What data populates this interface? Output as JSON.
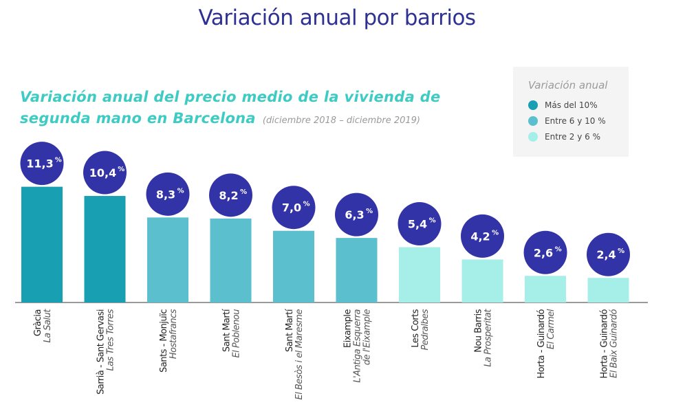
{
  "header": {
    "title": "Variación anual por barrios"
  },
  "subtitle": {
    "main": "Variación anual del precio medio de la vivienda de segunda mano en Barcelona",
    "period": "(diciembre 2018 – diciembre 2019)"
  },
  "legend": {
    "title": "Variación anual",
    "items": [
      {
        "label": "Más del 10%",
        "color": "#18a0b2"
      },
      {
        "label": "Entre 6 y 10 %",
        "color": "#5bbfcd"
      },
      {
        "label": "Entre 2  y 6 %",
        "color": "#a5efe8"
      }
    ]
  },
  "chart_data": {
    "type": "bar",
    "categories": [
      {
        "district": "Gràcia",
        "neighborhood": [
          "La Salut"
        ]
      },
      {
        "district": "Sarrià - Sant Gervasi",
        "neighborhood": [
          "Las Tres Torres"
        ]
      },
      {
        "district": "Sants - Monjuïc",
        "neighborhood": [
          "Hostafrancs"
        ]
      },
      {
        "district": "Sant Martí",
        "neighborhood": [
          "El Poblenou"
        ]
      },
      {
        "district": "Sant Martí",
        "neighborhood": [
          "El Besòs i el Maresme"
        ]
      },
      {
        "district": "Eixample",
        "neighborhood": [
          "L'Antiga Esquerra",
          "de l'Eixample"
        ]
      },
      {
        "district": "Les Corts",
        "neighborhood": [
          "Pedralbes"
        ]
      },
      {
        "district": "Nou Barris",
        "neighborhood": [
          "La Prosperitat"
        ]
      },
      {
        "district": "Horta - Guinardó",
        "neighborhood": [
          "El Carmel"
        ]
      },
      {
        "district": "Horta - Guinardó",
        "neighborhood": [
          "El Baix Guinardó"
        ]
      }
    ],
    "values": [
      11.3,
      10.4,
      8.3,
      8.2,
      7.0,
      6.3,
      5.4,
      4.2,
      2.6,
      2.4
    ],
    "value_labels": [
      "11,3%",
      "10,4%",
      "8,3%",
      "8,2%",
      "7,0%",
      "6,3%",
      "5,4%",
      "4,2%",
      "2,6%",
      "2,4%"
    ],
    "bar_colors": [
      "#18a0b2",
      "#18a0b2",
      "#5bbfcd",
      "#5bbfcd",
      "#5bbfcd",
      "#5bbfcd",
      "#a5efe8",
      "#a5efe8",
      "#a5efe8",
      "#a5efe8"
    ],
    "label_bubble_color": "#3333a8",
    "baseline_color": "#9a9a9a"
  }
}
